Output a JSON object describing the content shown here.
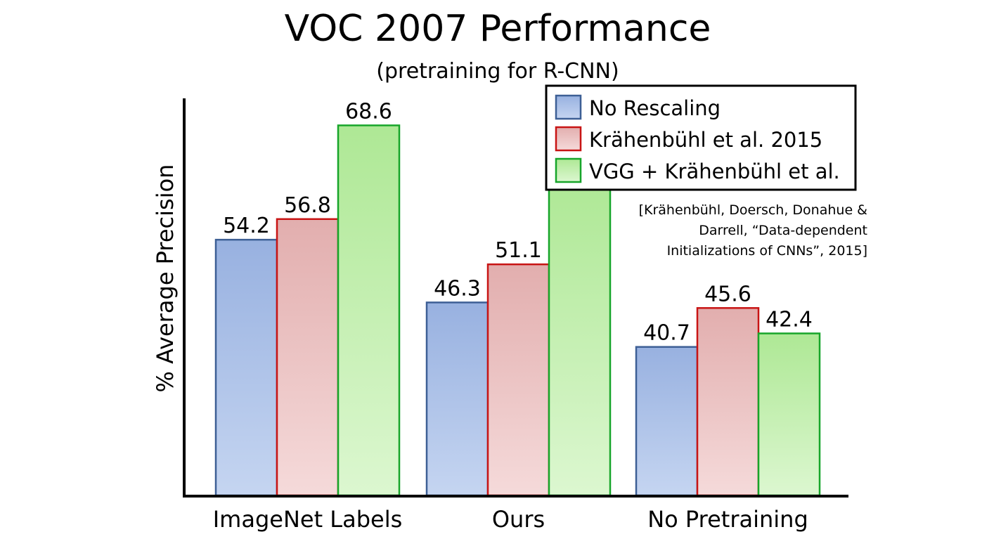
{
  "chart_data": {
    "type": "bar",
    "title": "VOC 2007 Performance",
    "subtitle": "(pretraining for R-CNN)",
    "xlabel": "",
    "ylabel": "% Average Precision",
    "categories": [
      "ImageNet Labels",
      "Ours",
      "No Pretraining"
    ],
    "series": [
      {
        "name": "No Rescaling",
        "values": [
          54.2,
          46.3,
          40.7
        ],
        "fill_top": "#98b1e0",
        "fill_bottom": "#c5d5f1",
        "stroke": "#3d5f95"
      },
      {
        "name": "Krähenbühl et al. 2015",
        "values": [
          56.8,
          51.1,
          45.6
        ],
        "fill_top": "#e2aeae",
        "fill_bottom": "#f5dada",
        "stroke": "#c81414"
      },
      {
        "name": "VGG + Krähenbühl et al.",
        "values": [
          68.6,
          61.7,
          42.4
        ],
        "fill_top": "#aee895",
        "fill_bottom": "#dcf7d0",
        "stroke": "#17a52a"
      }
    ],
    "ylim": [
      22,
      72
    ],
    "grid": false,
    "legend_position": "top-right",
    "annotation": [
      "[Krähenbühl, Doersch, Donahue &",
      "Darrell, “Data-dependent",
      "Initializations of CNNs”, 2015]"
    ]
  }
}
